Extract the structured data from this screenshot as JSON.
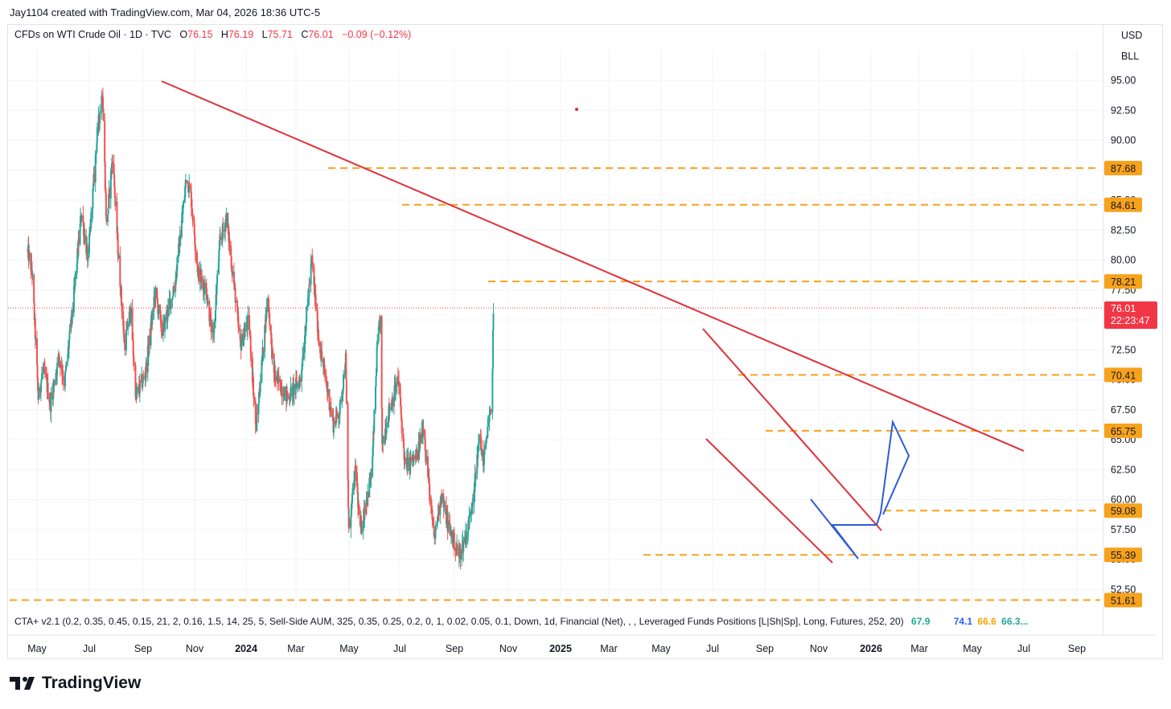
{
  "header": {
    "attribution": "Jay1104 created with TradingView.com, Mar 04, 2026 18:36 UTC-5"
  },
  "symbol": {
    "name": "CFDs on WTI Crude Oil · 1D · TVC",
    "open_label": "O",
    "open": "76.15",
    "high_label": "H",
    "high": "76.19",
    "low_label": "L",
    "low": "75.71",
    "close_label": "C",
    "close": "76.01",
    "change": "−0.09 (−0.12%)"
  },
  "units": {
    "currency": "USD",
    "measure": "BLL"
  },
  "price_tag": {
    "value": "76.01",
    "countdown": "22:23:47"
  },
  "indicator": {
    "text": "CTA+ v2.1 (0.2, 0.35, 0.45, 0.15, 21, 2, 0.16, 1.5, 14, 25, 5, Sell-Side AUM, 325, 0.35, 0.25, 0.2, 0, 1, 0.02, 0.05, 0.1, Down, 1d, Financial (Net), , , Leveraged Funds Positions [L|Sh|Sp], Long, Futures, 252, 20)",
    "values": [
      {
        "v": "67.9",
        "color": "#22ab94"
      },
      {
        "v": "74.1",
        "color": "#2962ff"
      },
      {
        "v": "66.6",
        "color": "#f7a600"
      },
      {
        "v": "66.3...",
        "color": "#26a69a"
      }
    ]
  },
  "brand": {
    "name": "TradingView"
  },
  "colors": {
    "up": "#26a69a",
    "down": "#ef5350",
    "trendline": "#e0303a",
    "level": "#f7a21b",
    "pattern": "#2f5bd7",
    "price_tag": "#f23645"
  },
  "chart_data": {
    "type": "candlestick",
    "y_axis_ticks": [
      "95.00",
      "92.50",
      "90.00",
      "87.50",
      "85.00",
      "82.50",
      "80.00",
      "77.50",
      "75.00",
      "72.50",
      "70.00",
      "67.50",
      "65.00",
      "62.50",
      "60.00",
      "57.50",
      "55.00",
      "52.50"
    ],
    "ylim": [
      50.5,
      96.5
    ],
    "x_axis_ticks": [
      "May",
      "Jul",
      "Sep",
      "Nov",
      "2024",
      "Mar",
      "May",
      "Jul",
      "Sep",
      "Nov",
      "2025",
      "Mar",
      "May",
      "Jul",
      "Sep",
      "Nov",
      "2026",
      "Mar",
      "May",
      "Jul",
      "Sep"
    ],
    "horizontal_levels": [
      "87.68",
      "84.61",
      "78.21",
      "70.41",
      "65.75",
      "59.08",
      "55.39",
      "51.61"
    ],
    "last_price": 76.01,
    "anchors": [
      {
        "d": "2023-04-10",
        "p": 80.7
      },
      {
        "d": "2023-04-20",
        "p": 79.0
      },
      {
        "d": "2023-05-04",
        "p": 68.5
      },
      {
        "d": "2023-05-15",
        "p": 71.0
      },
      {
        "d": "2023-06-01",
        "p": 68.0
      },
      {
        "d": "2023-06-20",
        "p": 72.0
      },
      {
        "d": "2023-07-03",
        "p": 69.8
      },
      {
        "d": "2023-07-20",
        "p": 75.5
      },
      {
        "d": "2023-08-10",
        "p": 84.0
      },
      {
        "d": "2023-08-25",
        "p": 80.0
      },
      {
        "d": "2023-09-15",
        "p": 90.5
      },
      {
        "d": "2023-09-27",
        "p": 94.2
      },
      {
        "d": "2023-10-06",
        "p": 82.8
      },
      {
        "d": "2023-10-20",
        "p": 88.7
      },
      {
        "d": "2023-11-01",
        "p": 81.0
      },
      {
        "d": "2023-11-16",
        "p": 72.9
      },
      {
        "d": "2023-11-30",
        "p": 75.9
      },
      {
        "d": "2023-12-12",
        "p": 68.6
      },
      {
        "d": "2024-01-02",
        "p": 70.4
      },
      {
        "d": "2024-01-25",
        "p": 77.3
      },
      {
        "d": "2024-02-10",
        "p": 74.0
      },
      {
        "d": "2024-03-10",
        "p": 78.0
      },
      {
        "d": "2024-04-05",
        "p": 87.0
      },
      {
        "d": "2024-04-15",
        "p": 85.4
      },
      {
        "d": "2024-05-01",
        "p": 79.0
      },
      {
        "d": "2024-05-20",
        "p": 77.5
      },
      {
        "d": "2024-06-04",
        "p": 73.2
      },
      {
        "d": "2024-06-20",
        "p": 81.5
      },
      {
        "d": "2024-07-05",
        "p": 83.5
      },
      {
        "d": "2024-07-25",
        "p": 77.0
      },
      {
        "d": "2024-08-05",
        "p": 72.8
      },
      {
        "d": "2024-08-25",
        "p": 75.0
      },
      {
        "d": "2024-09-10",
        "p": 65.8
      },
      {
        "d": "2024-10-07",
        "p": 77.1
      },
      {
        "d": "2024-10-20",
        "p": 70.5
      },
      {
        "d": "2024-11-20",
        "p": 68.5
      },
      {
        "d": "2024-12-20",
        "p": 70.0
      },
      {
        "d": "2025-01-15",
        "p": 80.0
      },
      {
        "d": "2025-02-01",
        "p": 73.0
      },
      {
        "d": "2025-03-05",
        "p": 66.3
      },
      {
        "d": "2025-03-20",
        "p": 67.5
      },
      {
        "d": "2025-04-02",
        "p": 71.7
      },
      {
        "d": "2025-04-09",
        "p": 57.5
      },
      {
        "d": "2025-04-25",
        "p": 62.5
      },
      {
        "d": "2025-05-05",
        "p": 57.2
      },
      {
        "d": "2025-06-01",
        "p": 62.5
      },
      {
        "d": "2025-06-13",
        "p": 72.9
      },
      {
        "d": "2025-06-20",
        "p": 75.0
      },
      {
        "d": "2025-06-24",
        "p": 64.5
      },
      {
        "d": "2025-07-10",
        "p": 67.5
      },
      {
        "d": "2025-07-31",
        "p": 70.0
      },
      {
        "d": "2025-08-15",
        "p": 62.8
      },
      {
        "d": "2025-09-10",
        "p": 63.5
      },
      {
        "d": "2025-09-26",
        "p": 66.2
      },
      {
        "d": "2025-10-20",
        "p": 56.5
      },
      {
        "d": "2025-11-05",
        "p": 60.5
      },
      {
        "d": "2025-11-20",
        "p": 58.0
      },
      {
        "d": "2025-12-16",
        "p": 55.3
      },
      {
        "d": "2026-01-05",
        "p": 57.5
      },
      {
        "d": "2026-01-25",
        "p": 62.5
      },
      {
        "d": "2026-01-30",
        "p": 65.5
      },
      {
        "d": "2026-02-10",
        "p": 63.0
      },
      {
        "d": "2026-02-20",
        "p": 66.5
      },
      {
        "d": "2026-02-27",
        "p": 67.0
      },
      {
        "d": "2026-03-02",
        "p": 71.5
      },
      {
        "d": "2026-03-04",
        "p": 76.0
      }
    ]
  }
}
